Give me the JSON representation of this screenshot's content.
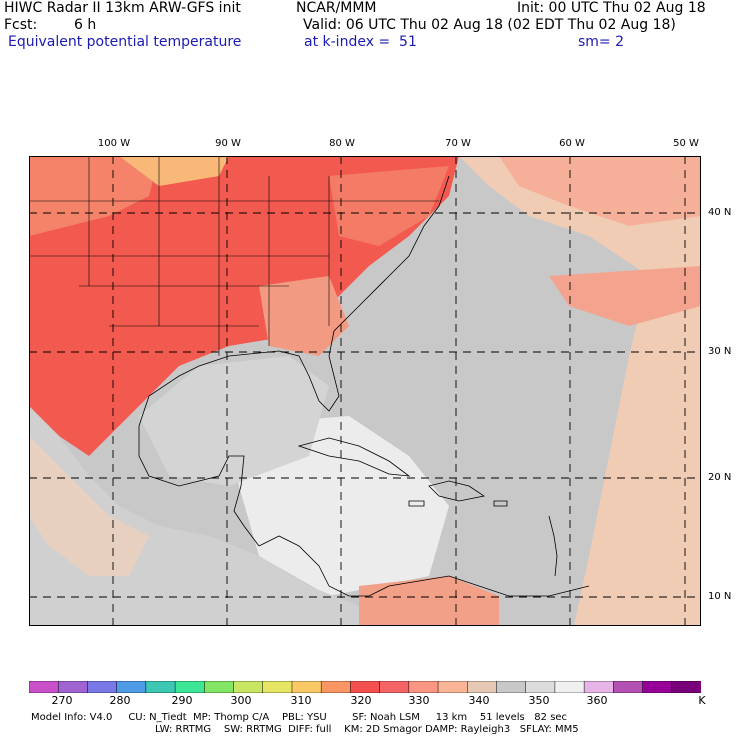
{
  "header": {
    "title": "HIWC Radar II 13km ARW-GFS init",
    "center": "NCAR/MMM",
    "init": "Init: 00 UTC Thu 02 Aug 18",
    "fcst_label": "Fcst:",
    "fcst_value": "6 h",
    "valid": "Valid: 06 UTC Thu 02 Aug 18 (02 EDT Thu 02 Aug 18)",
    "field": "Equivalent potential temperature",
    "level": "at k-index =  51",
    "smoothing": "sm= 2"
  },
  "map": {
    "lon_labels": [
      "100 W",
      "90 W",
      "80 W",
      "70 W",
      "60 W",
      "50 W"
    ],
    "lat_labels": [
      "40 N",
      "30 N",
      "20 N",
      "10 N"
    ]
  },
  "colorbar": {
    "ticks": [
      "270",
      "280",
      "290",
      "300",
      "310",
      "320",
      "330",
      "340",
      "350",
      "360"
    ],
    "unit": "K",
    "colors": [
      "#c850c8",
      "#a064d2",
      "#7878e6",
      "#509be6",
      "#3cc8b4",
      "#3ce696",
      "#82e664",
      "#c8e664",
      "#e6e664",
      "#fac864",
      "#fa9664",
      "#f55050",
      "#f56464",
      "#fa9682",
      "#fab496",
      "#e6c8b4",
      "#c8c8c8",
      "#dcdcdc",
      "#f0f0f0",
      "#e6b4e6",
      "#b450b4",
      "#960096",
      "#780078"
    ]
  },
  "footer": {
    "line1": "Model Info: V4.0     CU: N_Tiedt  MP: Thomp C/A    PBL: YSU        SF: Noah LSM     13 km    51 levels   82 sec",
    "line2": "LW: RRTMG    SW: RRTMG  DIFF: full    KM: 2D Smagor DAMP: Rayleigh3   SFLAY: MM5"
  }
}
